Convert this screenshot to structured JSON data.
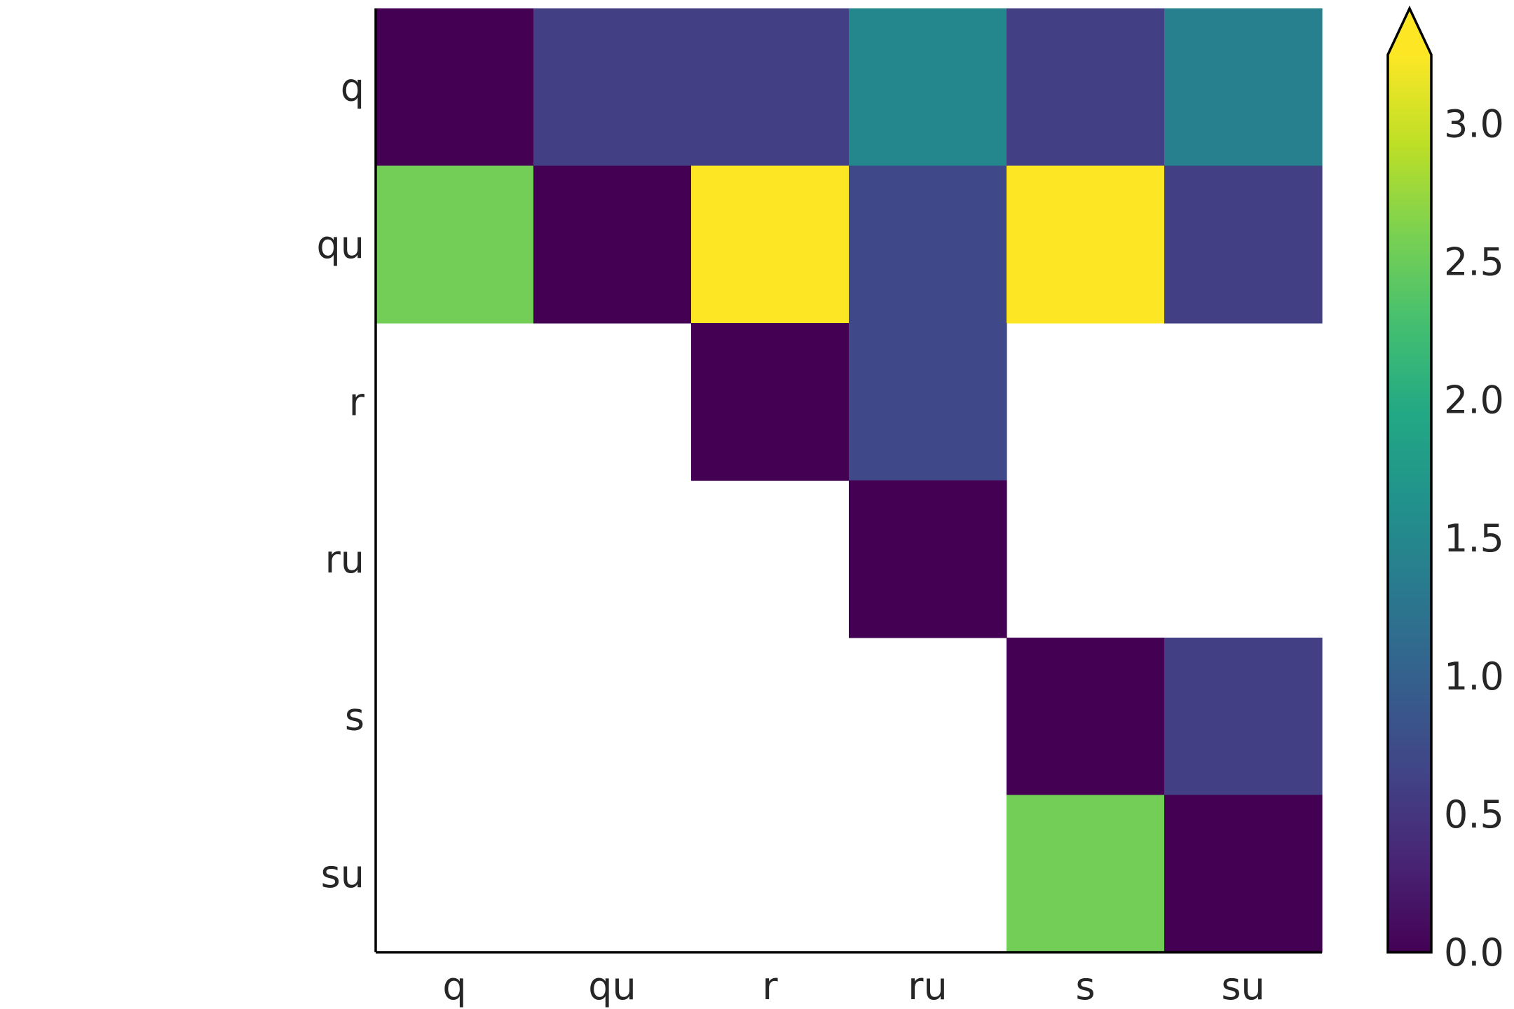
{
  "chart_data": {
    "type": "heatmap",
    "title": "",
    "xlabel": "",
    "ylabel": "",
    "x_categories": [
      "q",
      "qu",
      "r",
      "ru",
      "s",
      "su"
    ],
    "y_categories": [
      "q",
      "qu",
      "r",
      "ru",
      "s",
      "su"
    ],
    "values": [
      [
        0.0,
        0.6,
        0.6,
        1.5,
        0.6,
        1.4
      ],
      [
        2.55,
        0.0,
        3.4,
        0.7,
        3.4,
        0.6
      ],
      [
        null,
        null,
        0.0,
        0.7,
        null,
        null
      ],
      [
        null,
        null,
        null,
        0.0,
        null,
        null
      ],
      [
        null,
        null,
        null,
        null,
        0.0,
        0.6
      ],
      [
        null,
        null,
        null,
        null,
        2.55,
        0.0
      ]
    ],
    "colormap": "viridis",
    "missing_color": "#ffffff",
    "colorbar": {
      "vmin": 0.0,
      "vmax": 3.25,
      "ticks": [
        0.0,
        0.5,
        1.0,
        1.5,
        2.0,
        2.5,
        3.0
      ],
      "tick_labels": [
        "0.0",
        "0.5",
        "1.0",
        "1.5",
        "2.0",
        "2.5",
        "3.0"
      ],
      "extend": "max",
      "position": "right"
    },
    "grid": false
  }
}
